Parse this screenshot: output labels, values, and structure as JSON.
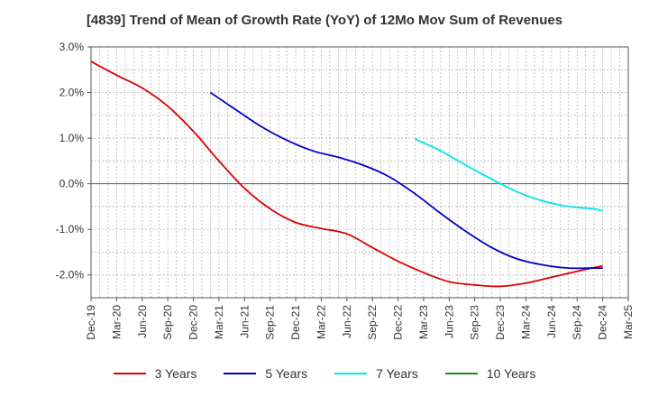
{
  "chart_data": {
    "type": "line",
    "title": "[4839]  Trend of Mean of Growth Rate (YoY) of 12Mo Mov Sum of Revenues",
    "xlabel": "",
    "ylabel": "",
    "ylim": [
      -2.5,
      3.0
    ],
    "yticks": [
      3.0,
      2.0,
      1.0,
      0.0,
      -1.0,
      -2.0
    ],
    "ytick_labels": [
      "3.0%",
      "2.0%",
      "1.0%",
      "0.0%",
      "-1.0%",
      "-2.0%"
    ],
    "x_tick_labels": [
      "Dec-19",
      "Mar-20",
      "Jun-20",
      "Sep-20",
      "Dec-20",
      "Mar-21",
      "Jun-21",
      "Sep-21",
      "Dec-21",
      "Mar-22",
      "Jun-22",
      "Sep-22",
      "Dec-22",
      "Mar-23",
      "Jun-23",
      "Sep-23",
      "Dec-23",
      "Mar-24",
      "Jun-24",
      "Sep-24",
      "Dec-24",
      "Mar-25"
    ],
    "x_range_months": [
      0,
      63
    ],
    "grid": true,
    "legend_position": "bottom",
    "series": [
      {
        "name": "3 Years",
        "color": "#dd0000",
        "x_months": [
          0,
          3,
          6,
          9,
          12,
          15,
          18,
          21,
          24,
          27,
          30,
          33,
          36,
          39,
          42,
          45,
          48,
          51,
          54,
          57,
          60
        ],
        "values": [
          2.68,
          2.38,
          2.1,
          1.7,
          1.15,
          0.5,
          -0.1,
          -0.55,
          -0.85,
          -0.98,
          -1.1,
          -1.4,
          -1.7,
          -1.95,
          -2.15,
          -2.22,
          -2.25,
          -2.18,
          -2.05,
          -1.92,
          -1.8
        ]
      },
      {
        "name": "5 Years",
        "color": "#0000cc",
        "x_months": [
          14,
          17,
          20,
          23,
          26,
          29,
          32,
          35,
          38,
          41,
          44,
          47,
          50,
          53,
          56,
          59,
          60
        ],
        "values": [
          2.0,
          1.62,
          1.25,
          0.95,
          0.72,
          0.58,
          0.4,
          0.15,
          -0.22,
          -0.65,
          -1.05,
          -1.4,
          -1.65,
          -1.78,
          -1.85,
          -1.85,
          -1.85
        ]
      },
      {
        "name": "7 Years",
        "color": "#00e5ee",
        "x_months": [
          38,
          41,
          44,
          47,
          50,
          53,
          56,
          59,
          60
        ],
        "values": [
          0.98,
          0.72,
          0.4,
          0.1,
          -0.18,
          -0.38,
          -0.5,
          -0.55,
          -0.6
        ]
      },
      {
        "name": "10 Years",
        "color": "#228b22",
        "x_months": [],
        "values": []
      }
    ]
  }
}
